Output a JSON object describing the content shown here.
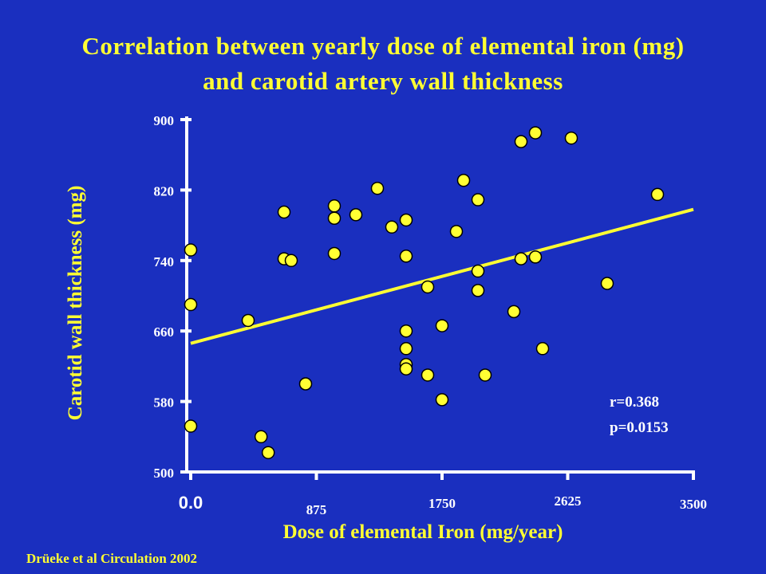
{
  "title_line1": "Correlation between yearly dose of elemental iron (mg)",
  "title_line2": "and carotid artery wall thickness",
  "citation": "Drüeke et al Circulation 2002",
  "stats": {
    "r": "r=0.368",
    "p": "p=0.0153"
  },
  "colors": {
    "background": "#1a2fbf",
    "accent": "#ffff33",
    "axis": "#ffffff",
    "point_stroke": "#000000"
  },
  "chart_data": {
    "type": "scatter",
    "xlabel": "Dose of elemental Iron (mg/year)",
    "ylabel": "Carotid wall thickness (mg)",
    "xlim": [
      0,
      3500
    ],
    "ylim": [
      500,
      900
    ],
    "x_ticks": [
      0,
      875,
      1750,
      2625,
      3500
    ],
    "x_tick_labels": [
      "0.0",
      "875",
      "1750",
      "2625",
      "3500"
    ],
    "y_ticks": [
      500,
      580,
      660,
      740,
      820,
      900
    ],
    "y_tick_labels": [
      "500",
      "580",
      "660",
      "740",
      "820",
      "900"
    ],
    "grid": false,
    "points": [
      {
        "x": 0,
        "y": 752
      },
      {
        "x": 0,
        "y": 690
      },
      {
        "x": 0,
        "y": 552
      },
      {
        "x": 400,
        "y": 672
      },
      {
        "x": 490,
        "y": 540
      },
      {
        "x": 540,
        "y": 522
      },
      {
        "x": 650,
        "y": 795
      },
      {
        "x": 650,
        "y": 742
      },
      {
        "x": 700,
        "y": 740
      },
      {
        "x": 800,
        "y": 600
      },
      {
        "x": 1000,
        "y": 802
      },
      {
        "x": 1000,
        "y": 788
      },
      {
        "x": 1000,
        "y": 748
      },
      {
        "x": 1150,
        "y": 792
      },
      {
        "x": 1300,
        "y": 822
      },
      {
        "x": 1400,
        "y": 778
      },
      {
        "x": 1500,
        "y": 786
      },
      {
        "x": 1500,
        "y": 745
      },
      {
        "x": 1500,
        "y": 660
      },
      {
        "x": 1500,
        "y": 640
      },
      {
        "x": 1500,
        "y": 622
      },
      {
        "x": 1500,
        "y": 617
      },
      {
        "x": 1650,
        "y": 710
      },
      {
        "x": 1650,
        "y": 610
      },
      {
        "x": 1750,
        "y": 666
      },
      {
        "x": 1750,
        "y": 582
      },
      {
        "x": 1850,
        "y": 773
      },
      {
        "x": 1900,
        "y": 831
      },
      {
        "x": 2000,
        "y": 809
      },
      {
        "x": 2000,
        "y": 728
      },
      {
        "x": 2000,
        "y": 706
      },
      {
        "x": 2050,
        "y": 610
      },
      {
        "x": 2250,
        "y": 682
      },
      {
        "x": 2300,
        "y": 875
      },
      {
        "x": 2300,
        "y": 742
      },
      {
        "x": 2400,
        "y": 885
      },
      {
        "x": 2400,
        "y": 744
      },
      {
        "x": 2450,
        "y": 640
      },
      {
        "x": 2650,
        "y": 879
      },
      {
        "x": 2900,
        "y": 714
      },
      {
        "x": 3250,
        "y": 815
      }
    ],
    "regression": {
      "x": [
        0,
        3500
      ],
      "y": [
        646,
        798
      ]
    },
    "annotations": [
      "r=0.368",
      "p=0.0153"
    ]
  }
}
